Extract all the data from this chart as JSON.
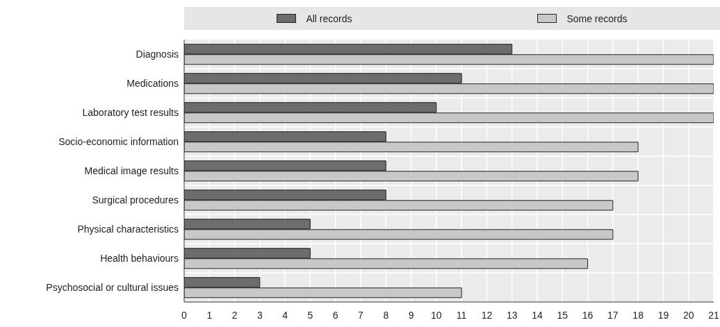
{
  "chart_data": {
    "type": "bar",
    "orientation": "horizontal",
    "categories": [
      "Diagnosis",
      "Medications",
      "Laboratory test results",
      "Socio-economic information",
      "Medical image results",
      "Surgical procedures",
      "Physical characteristics",
      "Health behaviours",
      "Psychosocial or cultural issues"
    ],
    "series": [
      {
        "name": "All records",
        "color": "#6d6d6d",
        "values": [
          13,
          11,
          10,
          8,
          8,
          8,
          5,
          5,
          3
        ]
      },
      {
        "name": "Some records",
        "color": "#c8c8c8",
        "values": [
          21,
          21,
          21,
          18,
          18,
          17,
          17,
          16,
          11
        ]
      }
    ],
    "xlim": [
      0,
      21
    ],
    "xticks": [
      0,
      1,
      2,
      3,
      4,
      5,
      6,
      7,
      8,
      9,
      10,
      11,
      12,
      13,
      14,
      15,
      16,
      17,
      18,
      19,
      20,
      21
    ],
    "grid": true,
    "legend": "top"
  }
}
